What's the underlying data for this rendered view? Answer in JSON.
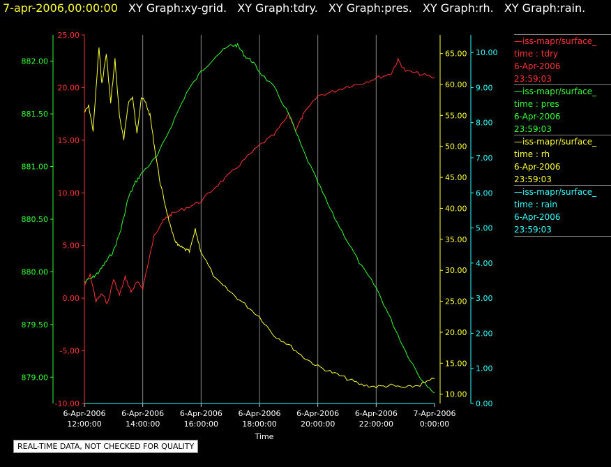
{
  "header": {
    "timestamp": "7-apr-2006,00:00:00",
    "titles": [
      "XY Graph:xy-grid.",
      "XY Graph:tdry.",
      "XY Graph:pres.",
      "XY Graph:rh.",
      "XY Graph:rain."
    ]
  },
  "legend": [
    {
      "series": "iss-mapr/surface_",
      "field": "time : tdry",
      "date": "6-Apr-2006",
      "time": "23:59:03",
      "color": "#ff3333"
    },
    {
      "series": "iss-mapr/surface_",
      "field": "time : pres",
      "date": "6-Apr-2006",
      "time": "23:59:03",
      "color": "#33ff33"
    },
    {
      "series": "iss-mapr/surface_",
      "field": "time : rh",
      "date": "6-Apr-2006",
      "time": "23:59:03",
      "color": "#ffff33"
    },
    {
      "series": "iss-mapr/surface_",
      "field": "time : rain",
      "date": "6-Apr-2006",
      "time": "23:59:03",
      "color": "#33ffff"
    }
  ],
  "disclaimer": "REAL-TIME DATA, NOT CHECKED FOR QUALITY",
  "chart_data": {
    "type": "line",
    "xlabel": "Time",
    "x_ticks": [
      "6-Apr-2006\n12:00:00",
      "6-Apr-2006\n14:00:00",
      "6-Apr-2006\n16:00:00",
      "6-Apr-2006\n18:00:00",
      "6-Apr-2006\n20:00:00",
      "6-Apr-2006\n22:00:00",
      "7-Apr-2006\n0:00:00"
    ],
    "x_range_hours": [
      12.0,
      24.0
    ],
    "grid": true,
    "axes": [
      {
        "id": "pres",
        "color": "#33ff33",
        "range": [
          878.75,
          882.25
        ],
        "ticks": [
          "879.00",
          "879.50",
          "880.00",
          "880.50",
          "881.00",
          "881.50",
          "882.00"
        ]
      },
      {
        "id": "tdry",
        "color": "#ff3333",
        "range": [
          -10,
          25
        ],
        "ticks": [
          "-10.00",
          "-5.00",
          "0.00",
          "5.00",
          "10.00",
          "15.00",
          "20.00",
          "25.00"
        ]
      },
      {
        "id": "rh",
        "color": "#ffff33",
        "range": [
          8.5,
          68
        ],
        "ticks": [
          "10.00",
          "15.00",
          "20.00",
          "25.00",
          "30.00",
          "35.00",
          "40.00",
          "45.00",
          "50.00",
          "55.00",
          "60.00",
          "65.00"
        ]
      },
      {
        "id": "rain",
        "color": "#33ffff",
        "range": [
          0,
          10.5
        ],
        "ticks": [
          "0.00",
          "1.00",
          "2.00",
          "3.00",
          "4.00",
          "5.00",
          "6.00",
          "7.00",
          "8.00",
          "9.00",
          "10.00"
        ]
      }
    ],
    "series": [
      {
        "name": "time : tdry",
        "axis": "tdry",
        "color": "#ff3333",
        "x": [
          12.0,
          12.2,
          12.4,
          12.6,
          12.8,
          13.0,
          13.2,
          13.4,
          13.6,
          13.8,
          14.0,
          14.2,
          14.4,
          14.6,
          14.8,
          15.0,
          15.5,
          16.0,
          16.5,
          17.0,
          17.5,
          18.0,
          18.5,
          19.0,
          19.25,
          19.5,
          20.0,
          20.5,
          21.0,
          21.5,
          22.0,
          22.5,
          22.75,
          23.0,
          23.5,
          24.0
        ],
        "y": [
          1.2,
          2.2,
          -0.3,
          0.4,
          -0.5,
          1.8,
          0.3,
          2.0,
          0.6,
          1.5,
          1.0,
          3.5,
          6.0,
          7.0,
          7.6,
          8.0,
          8.6,
          9.2,
          10.6,
          11.8,
          13.2,
          14.5,
          15.5,
          17.4,
          16.0,
          17.4,
          19.2,
          19.6,
          20.1,
          20.4,
          20.9,
          21.3,
          22.6,
          21.6,
          21.3,
          20.9
        ]
      },
      {
        "name": "time : pres",
        "axis": "pres",
        "color": "#33ff33",
        "x": [
          12.0,
          12.3,
          12.5,
          12.75,
          13.0,
          13.25,
          13.5,
          13.75,
          14.0,
          14.5,
          15.0,
          15.5,
          16.0,
          16.5,
          17.0,
          17.25,
          17.5,
          17.75,
          18.0,
          18.5,
          19.0,
          19.5,
          20.0,
          20.5,
          21.0,
          21.5,
          22.0,
          22.5,
          23.0,
          23.5,
          24.0
        ],
        "y": [
          879.9,
          879.95,
          880.0,
          880.1,
          880.2,
          880.4,
          880.7,
          880.85,
          880.95,
          881.1,
          881.4,
          881.7,
          881.9,
          882.05,
          882.15,
          882.15,
          882.05,
          882.0,
          881.9,
          881.75,
          881.5,
          881.15,
          880.85,
          880.55,
          880.3,
          880.05,
          879.85,
          879.55,
          879.25,
          879.0,
          878.85
        ]
      },
      {
        "name": "time : rh",
        "axis": "rh",
        "color": "#ffff33",
        "x": [
          12.0,
          12.15,
          12.3,
          12.5,
          12.6,
          12.75,
          12.9,
          13.05,
          13.2,
          13.35,
          13.5,
          13.65,
          13.8,
          13.95,
          14.1,
          14.25,
          14.4,
          14.6,
          14.8,
          15.0,
          15.2,
          15.4,
          15.6,
          15.8,
          16.0,
          16.5,
          17.0,
          17.5,
          18.0,
          18.5,
          19.0,
          19.5,
          20.0,
          20.5,
          21.0,
          21.5,
          22.0,
          22.5,
          23.0,
          23.5,
          24.0
        ],
        "y": [
          55.5,
          56.5,
          52.5,
          66.0,
          60.0,
          65.0,
          57.0,
          64.0,
          55.0,
          51.0,
          57.0,
          58.0,
          52.0,
          58.0,
          57.0,
          55.0,
          50.0,
          44.0,
          40.0,
          36.0,
          34.0,
          33.5,
          33.0,
          36.5,
          33.0,
          28.5,
          26.5,
          24.5,
          22.5,
          19.5,
          18.0,
          16.0,
          14.5,
          13.5,
          12.5,
          11.5,
          11.2,
          11.4,
          11.0,
          11.5,
          12.5
        ]
      },
      {
        "name": "time : rain",
        "axis": "rain",
        "color": "#33ffff",
        "x": [
          12.0,
          24.0
        ],
        "y": [
          0.0,
          0.0
        ]
      }
    ]
  }
}
